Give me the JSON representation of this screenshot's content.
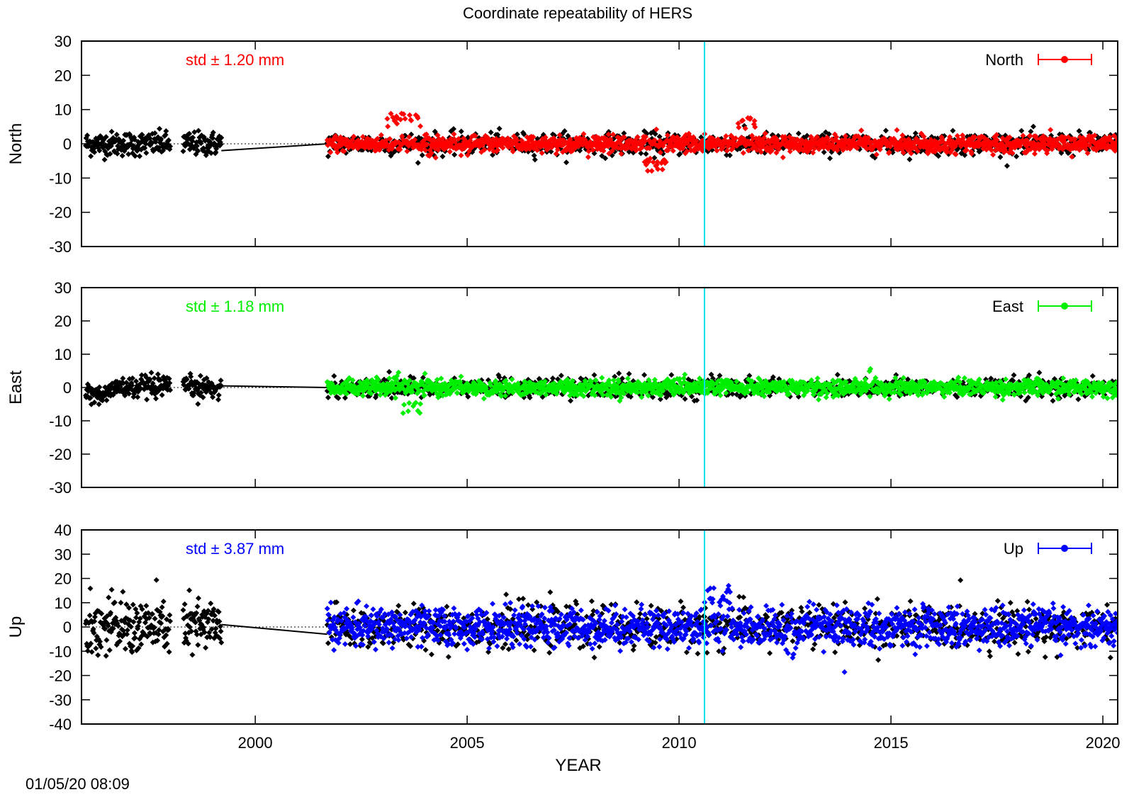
{
  "title": "Coordinate repeatability of HERS",
  "timestamp": "01/05/20 08:09",
  "chart_data": {
    "type": "scatter",
    "title": "Coordinate repeatability of HERS",
    "xlabel": "YEAR",
    "xlim": [
      1995.9,
      2020.35
    ],
    "xticks": [
      2000,
      2005,
      2010,
      2015,
      2020
    ],
    "marker_line_x": 2010.6,
    "marker_line_color": "#00e0f0",
    "panels": [
      {
        "ylabel": "North",
        "ylim": [
          -30,
          30
        ],
        "yticks": [
          30,
          20,
          10,
          0,
          -10,
          -20,
          -30
        ],
        "std_label": "std ± 1.20 mm",
        "legend": "North",
        "color": "#ff0000",
        "series": [
          {
            "name": "North",
            "x_range": [
              2001.7,
              2020.35
            ],
            "color": "#ff0000",
            "scatter_mm": 1.2,
            "spike_ranges": [
              [
                2003.1,
                2003.9,
                9
              ],
              [
                2009.2,
                2009.7,
                -8
              ],
              [
                2011.4,
                2011.8,
                8
              ]
            ]
          },
          {
            "x_range_early": [
              [
                1996.0,
                1998.0
              ],
              [
                1998.3,
                1999.2
              ]
            ],
            "x_range": [
              2001.7,
              2020.35
            ],
            "color": "#000000",
            "scatter_mm": 1.6
          }
        ]
      },
      {
        "ylabel": "East",
        "ylim": [
          -30,
          30
        ],
        "yticks": [
          30,
          20,
          10,
          0,
          -10,
          -20,
          -30
        ],
        "std_label": "std ± 1.18 mm",
        "legend": "East",
        "color": "#00ee00",
        "series": [
          {
            "name": "East",
            "x_range": [
              2001.7,
              2020.35
            ],
            "color": "#00ee00",
            "scatter_mm": 1.18,
            "spike_ranges": [
              [
                2003.5,
                2003.9,
                -9
              ],
              [
                2005.2,
                2005.2,
                9.5
              ],
              [
                2014.5,
                2014.5,
                9.5
              ]
            ]
          },
          {
            "x_range_early": [
              [
                1996.0,
                1998.0
              ],
              [
                1998.3,
                1999.2
              ]
            ],
            "x_range": [
              2001.7,
              2020.35
            ],
            "color": "#000000",
            "scatter_mm": 1.5
          }
        ]
      },
      {
        "ylabel": "Up",
        "ylim": [
          -40,
          40
        ],
        "yticks": [
          40,
          30,
          20,
          10,
          0,
          -10,
          -20,
          -30,
          -40
        ],
        "std_label": "std ± 3.87 mm",
        "legend": "Up",
        "color": "#0000ff",
        "series": [
          {
            "name": "Up",
            "x_range": [
              2001.7,
              2020.35
            ],
            "color": "#0000ff",
            "scatter_mm": 3.87,
            "spike_ranges": [
              [
                2010.6,
                2011.2,
                19
              ],
              [
                2012.5,
                2012.8,
                -13
              ]
            ]
          },
          {
            "x_range_early": [
              [
                1996.0,
                1998.0
              ],
              [
                1998.3,
                1999.2
              ]
            ],
            "x_range": [
              2001.7,
              2020.35
            ],
            "color": "#000000",
            "scatter_mm": 4.5
          }
        ]
      }
    ]
  }
}
